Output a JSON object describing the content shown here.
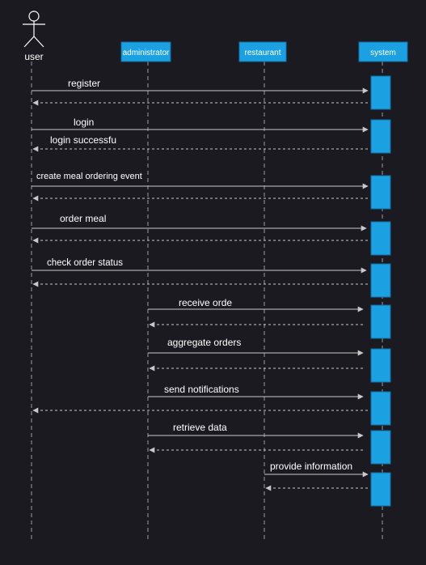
{
  "diagram": {
    "colors": {
      "background": "#1c1a21",
      "participant_box": "#1ba1e2",
      "participant_border": "#0f6fa6",
      "lifeline": "#9a9a9a",
      "arrow": "#c8c8c8",
      "text": "#ffffff"
    },
    "actor": {
      "label": "user",
      "icon": "stick-figure-actor-icon"
    },
    "participants": [
      {
        "id": "administrator",
        "label": "administrator"
      },
      {
        "id": "restaurant",
        "label": "restaurant"
      },
      {
        "id": "system",
        "label": "system"
      }
    ],
    "messages": [
      {
        "label": "register",
        "from": "user",
        "to": "system",
        "reply_to": "user"
      },
      {
        "label": "login",
        "from": "user",
        "to": "system",
        "reply_to": "user"
      },
      {
        "label": "login successfu",
        "from": "system",
        "to": "user",
        "is_reply_label": true
      },
      {
        "label": "create meal ordering event",
        "from": "user",
        "to": "system",
        "reply_to": "user"
      },
      {
        "label": "order meal",
        "from": "user",
        "to": "system",
        "reply_to": "user"
      },
      {
        "label": "check order status",
        "from": "user",
        "to": "system",
        "reply_to": "user"
      },
      {
        "label": "receive orde",
        "from": "administrator",
        "to": "system",
        "reply_to": "administrator"
      },
      {
        "label": "aggregate orders",
        "from": "administrator",
        "to": "system",
        "reply_to": "administrator"
      },
      {
        "label": "send notifications",
        "from": "administrator",
        "to": "system",
        "reply_to": "user"
      },
      {
        "label": "retrieve data",
        "from": "administrator",
        "to": "system",
        "reply_to": "administrator"
      },
      {
        "label": "provide information",
        "from": "restaurant",
        "to": "system",
        "reply_to": "restaurant"
      }
    ]
  }
}
